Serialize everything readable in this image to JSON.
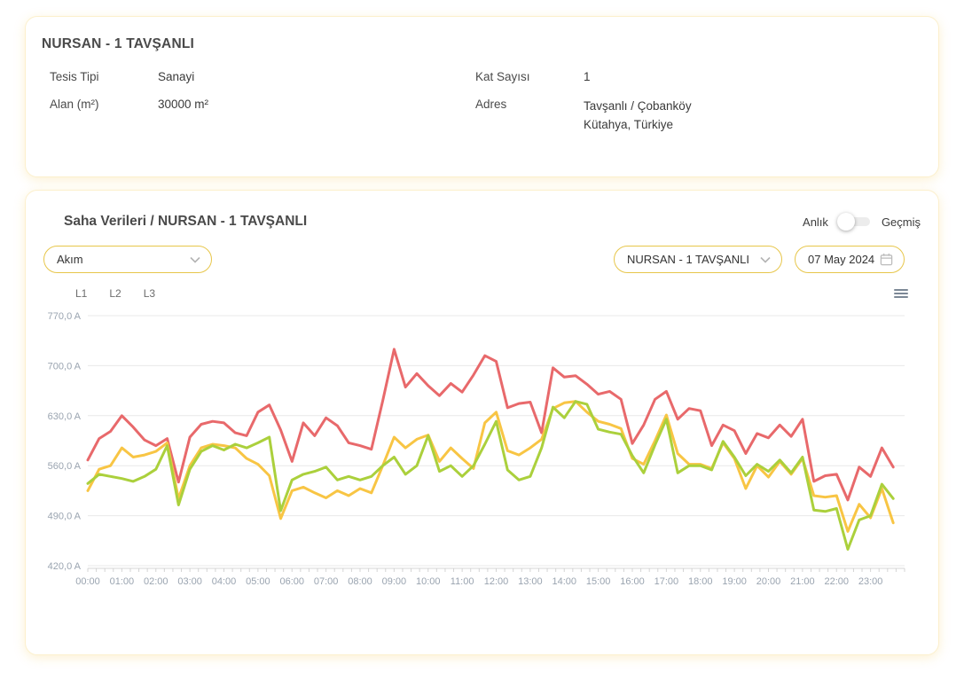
{
  "facility_card": {
    "title": "NURSAN - 1 TAVŞANLI",
    "fields": [
      {
        "label": "Tesis Tipi",
        "value": "Sanayi"
      },
      {
        "label": "Kat Sayısı",
        "value": "1"
      },
      {
        "label": "Alan (m²)",
        "value": "30000 m²"
      },
      {
        "label": "Adres",
        "value": "Tavşanlı / Çobanköy",
        "value2": "Kütahya, Türkiye"
      }
    ]
  },
  "data_card": {
    "title": "Saha Verileri / NURSAN - 1 TAVŞANLI",
    "toggle": {
      "left_label": "Anlık",
      "right_label": "Geçmiş",
      "state": "left"
    },
    "metric_select": {
      "value": "Akım",
      "icon": "chevron-down-icon"
    },
    "facility_select": {
      "value": "NURSAN - 1 TAVŞANLI",
      "icon": "chevron-down-icon"
    },
    "date_picker": {
      "value": "07 May 2024",
      "icon": "calendar-icon"
    },
    "menu_icon": "hamburger-icon"
  },
  "chart_data": {
    "type": "line",
    "unit": "A",
    "x_start_hour": 0,
    "x_step_minutes": 20,
    "xlim_hours": [
      0,
      24
    ],
    "ylim": [
      420,
      770
    ],
    "yticks": [
      420,
      490,
      560,
      630,
      700,
      770
    ],
    "ytick_labels": [
      "420,0 A",
      "490,0 A",
      "560,0 A",
      "630,0 A",
      "700,0 A",
      "770,0 A"
    ],
    "xtick_labels": [
      "00:00",
      "01:00",
      "02:00",
      "03:00",
      "04:00",
      "05:00",
      "06:00",
      "07:00",
      "08:00",
      "09:00",
      "10:00",
      "11:00",
      "12:00",
      "13:00",
      "14:00",
      "15:00",
      "16:00",
      "17:00",
      "18:00",
      "19:00",
      "20:00",
      "21:00",
      "22:00",
      "23:00"
    ],
    "grid": "horizontal",
    "grid_color": "#e8e8e8",
    "axis_line_color": "#d4d4d4",
    "axis_label_color": "#9aa4b0",
    "legend_position": "top-left",
    "series": [
      {
        "name": "L1",
        "color": "#e8696b",
        "values": [
          568,
          598,
          608,
          630,
          614,
          596,
          588,
          598,
          537,
          600,
          618,
          622,
          620,
          606,
          602,
          635,
          645,
          610,
          566,
          620,
          602,
          627,
          616,
          592,
          588,
          583,
          651,
          723,
          670,
          689,
          672,
          658,
          675,
          663,
          687,
          714,
          706,
          641,
          647,
          649,
          606,
          697,
          684,
          686,
          674,
          660,
          664,
          653,
          591,
          617,
          653,
          664,
          625,
          640,
          637,
          588,
          617,
          609,
          577,
          605,
          599,
          617,
          601,
          625,
          538,
          546,
          548,
          512,
          558,
          545,
          585,
          558
        ]
      },
      {
        "name": "L2",
        "color": "#f8c544",
        "values": [
          525,
          555,
          560,
          585,
          572,
          575,
          580,
          592,
          514,
          560,
          585,
          590,
          588,
          585,
          570,
          562,
          546,
          486,
          525,
          530,
          522,
          515,
          525,
          518,
          528,
          522,
          560,
          600,
          585,
          597,
          603,
          566,
          585,
          570,
          556,
          620,
          635,
          581,
          575,
          585,
          597,
          640,
          648,
          650,
          635,
          622,
          618,
          612,
          570,
          562,
          595,
          631,
          577,
          562,
          562,
          556,
          592,
          570,
          528,
          560,
          544,
          566,
          548,
          570,
          518,
          516,
          518,
          468,
          506,
          487,
          528,
          480
        ]
      },
      {
        "name": "L3",
        "color": "#abd03c",
        "values": [
          535,
          548,
          545,
          542,
          538,
          545,
          555,
          588,
          505,
          555,
          580,
          588,
          582,
          590,
          585,
          592,
          600,
          497,
          540,
          548,
          552,
          558,
          540,
          545,
          540,
          545,
          560,
          572,
          548,
          560,
          602,
          552,
          560,
          545,
          560,
          590,
          622,
          554,
          540,
          545,
          585,
          642,
          627,
          650,
          646,
          611,
          607,
          604,
          574,
          550,
          589,
          625,
          550,
          560,
          560,
          554,
          594,
          572,
          546,
          562,
          552,
          568,
          550,
          572,
          498,
          496,
          500,
          443,
          484,
          490,
          534,
          514
        ]
      }
    ]
  }
}
